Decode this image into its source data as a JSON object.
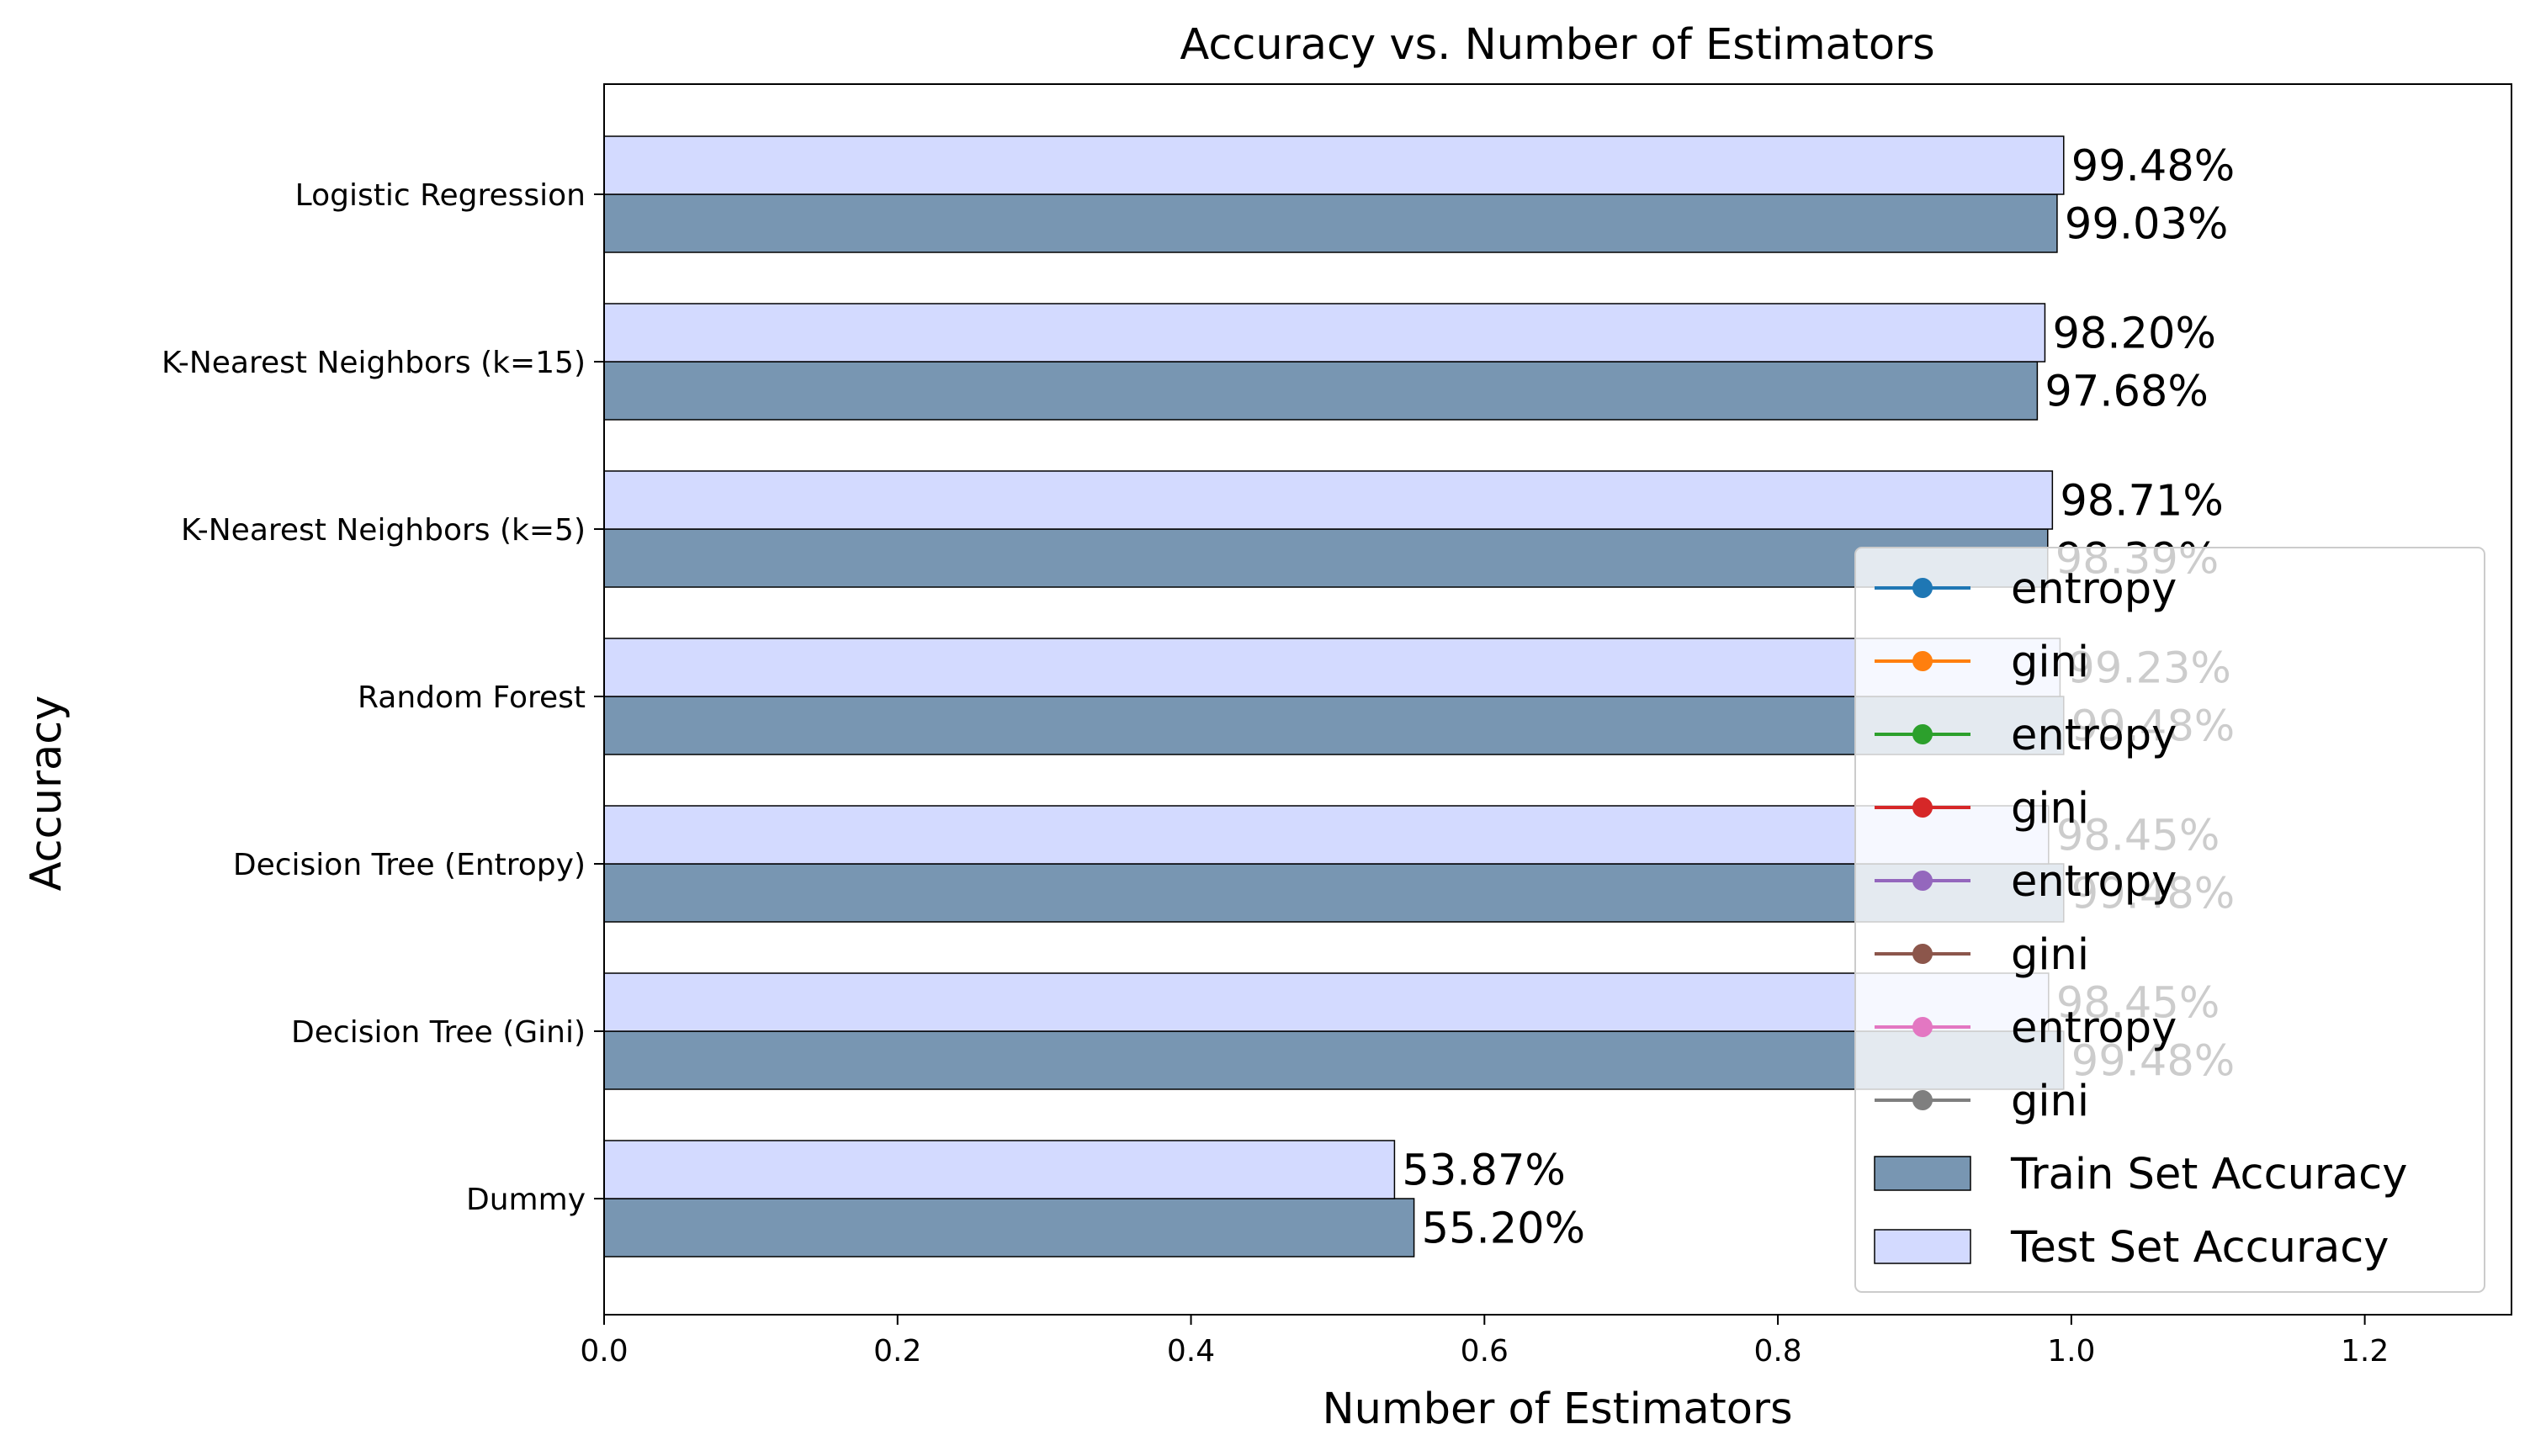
{
  "chart_data": {
    "type": "bar",
    "orientation": "horizontal",
    "title": "Accuracy vs. Number of Estimators",
    "xlabel": "Number of Estimators",
    "ylabel": "Accuracy",
    "xlim": [
      0,
      1.3
    ],
    "xticks": [
      "0.0",
      "0.2",
      "0.4",
      "0.6",
      "0.8",
      "1.0",
      "1.2"
    ],
    "xtick_values": [
      0,
      0.2,
      0.4,
      0.6,
      0.8,
      1.0,
      1.2
    ],
    "categories": [
      "Dummy",
      "Decision Tree (Gini)",
      "Decision Tree (Entropy)",
      "Random Forest",
      "K-Nearest Neighbors (k=5)",
      "K-Nearest Neighbors (k=15)",
      "Logistic Regression"
    ],
    "series": [
      {
        "name": "Train Set Accuracy",
        "color": "#7896b2",
        "values": [
          0.552,
          0.9948,
          0.9948,
          0.9948,
          0.9839,
          0.9768,
          0.9903
        ],
        "labels": [
          "55.20%",
          "99.48%",
          "99.48%",
          "99.48%",
          "98.39%",
          "97.68%",
          "99.03%"
        ]
      },
      {
        "name": "Test Set Accuracy",
        "color": "#d3daff",
        "values": [
          0.5387,
          0.9845,
          0.9845,
          0.9923,
          0.9871,
          0.982,
          0.9948
        ],
        "labels": [
          "53.87%",
          "98.45%",
          "98.45%",
          "99.23%",
          "98.71%",
          "98.20%",
          "99.48%"
        ]
      }
    ],
    "grid": false,
    "legend": {
      "placement": "lower-right",
      "entries": [
        {
          "label": "entropy",
          "kind": "line",
          "color": "#1f77b4"
        },
        {
          "label": "gini",
          "kind": "line",
          "color": "#ff7f0e"
        },
        {
          "label": "entropy",
          "kind": "line",
          "color": "#2ca02c"
        },
        {
          "label": "gini",
          "kind": "line",
          "color": "#d62728"
        },
        {
          "label": "entropy",
          "kind": "line",
          "color": "#9467bd"
        },
        {
          "label": "gini",
          "kind": "line",
          "color": "#8c564b"
        },
        {
          "label": "entropy",
          "kind": "line",
          "color": "#e377c2"
        },
        {
          "label": "gini",
          "kind": "line",
          "color": "#7f7f7f"
        },
        {
          "label": "Train Set Accuracy",
          "kind": "patch",
          "color": "#7896b2"
        },
        {
          "label": "Test Set Accuracy",
          "kind": "patch",
          "color": "#d3daff"
        }
      ]
    }
  }
}
